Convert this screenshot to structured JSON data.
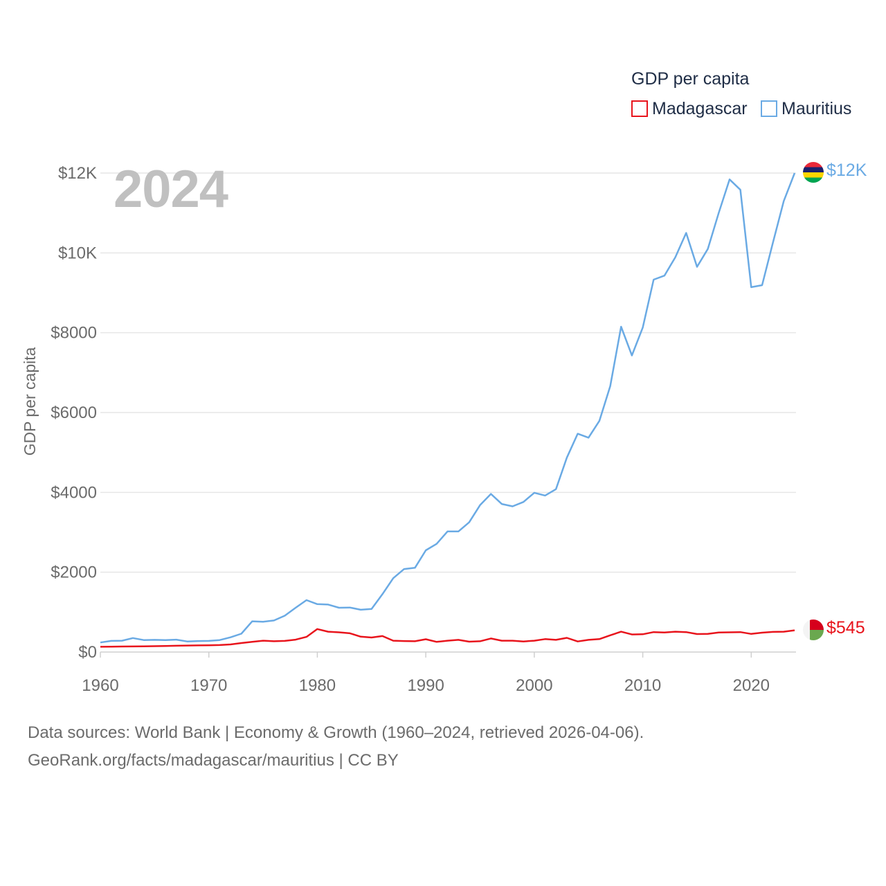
{
  "legend": {
    "title": "GDP per capita",
    "items": [
      {
        "label": "Madagascar",
        "color": "#e8141c"
      },
      {
        "label": "Mauritius",
        "color": "#6aaae4"
      }
    ]
  },
  "year_display": "2024",
  "end_labels": {
    "madagascar": "$545",
    "mauritius": "$12K"
  },
  "footer": {
    "line1": "Data sources: World Bank | Economy & Growth (1960–2024, retrieved 2026-04-06).",
    "line2": "GeoRank.org/facts/madagascar/mauritius | CC BY"
  },
  "chart_data": {
    "type": "line",
    "title": "GDP per capita",
    "xlabel": "",
    "ylabel": "GDP per capita",
    "xlim": [
      1960,
      2024
    ],
    "ylim": [
      0,
      12000
    ],
    "x_ticks": [
      1960,
      1970,
      1980,
      1990,
      2000,
      2010,
      2020
    ],
    "x_tick_labels": [
      "1960",
      "1970",
      "1980",
      "1990",
      "2000",
      "2010",
      "2020"
    ],
    "y_ticks": [
      0,
      2000,
      4000,
      6000,
      8000,
      10000,
      12000
    ],
    "y_tick_labels": [
      "$0",
      "$2000",
      "$4000",
      "$6000",
      "$8000",
      "$10K",
      "$12K"
    ],
    "grid": true,
    "legend_position": "top-right",
    "x": [
      1960,
      1961,
      1962,
      1963,
      1964,
      1965,
      1966,
      1967,
      1968,
      1969,
      1970,
      1971,
      1972,
      1973,
      1974,
      1975,
      1976,
      1977,
      1978,
      1979,
      1980,
      1981,
      1982,
      1983,
      1984,
      1985,
      1986,
      1987,
      1988,
      1989,
      1990,
      1991,
      1992,
      1993,
      1994,
      1995,
      1996,
      1997,
      1998,
      1999,
      2000,
      2001,
      2002,
      2003,
      2004,
      2005,
      2006,
      2007,
      2008,
      2009,
      2010,
      2011,
      2012,
      2013,
      2014,
      2015,
      2016,
      2017,
      2018,
      2019,
      2020,
      2021,
      2022,
      2023,
      2024
    ],
    "series": [
      {
        "name": "Madagascar",
        "color": "#e8141c",
        "values": [
          131,
          134,
          138,
          141,
          144,
          147,
          152,
          157,
          163,
          166,
          168,
          175,
          190,
          225,
          255,
          285,
          270,
          280,
          310,
          380,
          575,
          510,
          495,
          470,
          385,
          365,
          400,
          285,
          275,
          270,
          320,
          255,
          285,
          305,
          260,
          270,
          340,
          285,
          285,
          265,
          285,
          325,
          305,
          355,
          265,
          305,
          325,
          420,
          510,
          440,
          445,
          500,
          490,
          510,
          500,
          450,
          455,
          490,
          495,
          500,
          455,
          485,
          505,
          510,
          545
        ]
      },
      {
        "name": "Mauritius",
        "color": "#6aaae4",
        "values": [
          240,
          280,
          285,
          350,
          300,
          305,
          300,
          310,
          265,
          275,
          280,
          300,
          370,
          460,
          770,
          760,
          790,
          910,
          1110,
          1300,
          1200,
          1190,
          1110,
          1115,
          1060,
          1080,
          1450,
          1850,
          2080,
          2110,
          2550,
          2710,
          3020,
          3020,
          3250,
          3680,
          3960,
          3710,
          3650,
          3760,
          3990,
          3920,
          4080,
          4870,
          5470,
          5370,
          5790,
          6660,
          8150,
          7430,
          8130,
          9330,
          9430,
          9890,
          10500,
          9650,
          10100,
          11000,
          11840,
          11580,
          9140,
          9190,
          10260,
          11300,
          12000
        ]
      }
    ]
  }
}
